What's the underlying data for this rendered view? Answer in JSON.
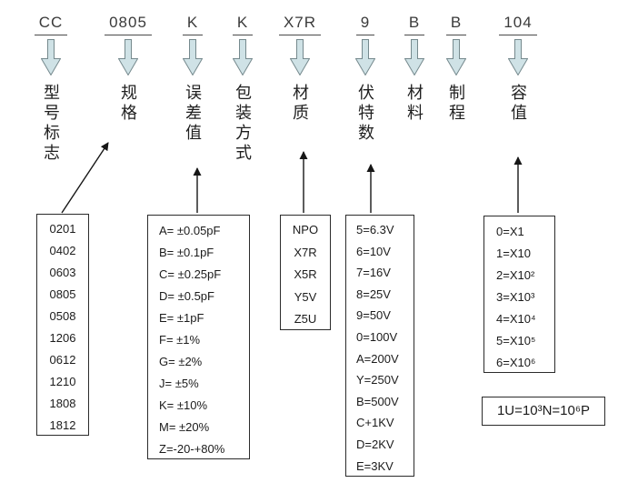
{
  "diagram_title": "capacitor part number code breakdown",
  "part_number": {
    "segments": [
      {
        "code": "CC",
        "label": "型号标志"
      },
      {
        "code": "0805",
        "label": "规格"
      },
      {
        "code": "K",
        "label": "误差值"
      },
      {
        "code": "K",
        "label": "包装方式"
      },
      {
        "code": "X7R",
        "label": "材质"
      },
      {
        "code": "9",
        "label": "伏特数"
      },
      {
        "code": "B",
        "label": "材料"
      },
      {
        "code": "B",
        "label": "制程"
      },
      {
        "code": "104",
        "label": "容值"
      }
    ]
  },
  "tables": {
    "size": {
      "items": [
        "0201",
        "0402",
        "0603",
        "0805",
        "0508",
        "1206",
        "0612",
        "1210",
        "1808",
        "1812"
      ]
    },
    "tolerance": {
      "items": [
        "A= ±0.05pF",
        "B= ±0.1pF",
        "C= ±0.25pF",
        "D= ±0.5pF",
        "E= ±1pF",
        "F= ±1%",
        "G= ±2%",
        "J= ±5%",
        "K= ±10%",
        "M= ±20%",
        "Z=-20-+80%"
      ]
    },
    "dielectric": {
      "items": [
        "NPO",
        "X7R",
        "X5R",
        "Y5V",
        "Z5U"
      ]
    },
    "voltage": {
      "items": [
        "5=6.3V",
        "6=10V",
        "7=16V",
        "8=25V",
        "9=50V",
        "0=100V",
        "A=200V",
        "Y=250V",
        "B=500V",
        "C+1KV",
        "D=2KV",
        "E=3KV"
      ]
    },
    "multiplier": {
      "items": [
        "0=X1",
        "1=X10",
        "2=X10²",
        "3=X10³",
        "4=X10⁴",
        "5=X10⁵",
        "6=X10⁶"
      ]
    }
  },
  "note": {
    "text": "1U=10³N=10⁶P"
  },
  "colors": {
    "arrow_fill": "#cfe2e6",
    "arrow_stroke": "#75898d",
    "connector_line": "#161616",
    "text": "#3a3a3a",
    "box_border": "#2b2b2b"
  }
}
